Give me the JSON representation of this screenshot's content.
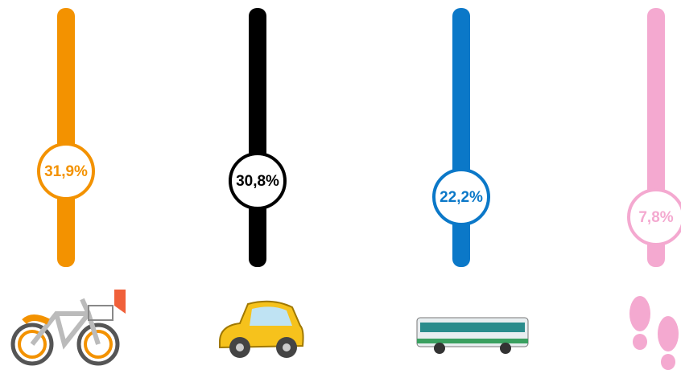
{
  "items": [
    {
      "label": "31,9%",
      "color": "#f39200"
    },
    {
      "label": "30,8%",
      "color": "#000000"
    },
    {
      "label": "22,2%",
      "color": "#0b78c8"
    },
    {
      "label": "7,8%",
      "color": "#f4a9d0"
    }
  ]
}
